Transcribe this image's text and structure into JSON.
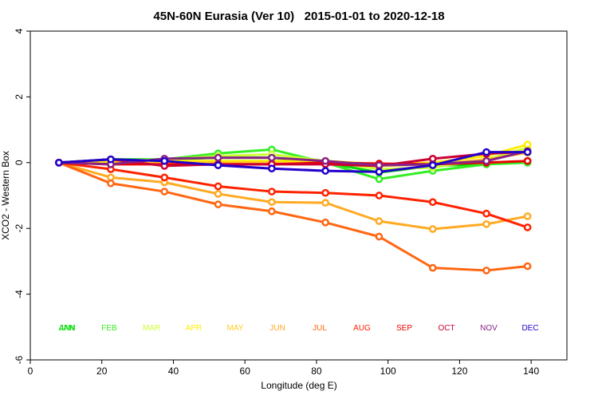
{
  "chart_data": {
    "type": "line",
    "title": "45N-60N Eurasia (Ver 10)   2015-01-01 to 2020-12-18",
    "xlabel": "Longitude (deg E)",
    "ylabel": "XCO2 - Western Box",
    "xlim": [
      0,
      150
    ],
    "ylim": [
      -6,
      4
    ],
    "xticks": [
      0,
      20,
      40,
      60,
      80,
      100,
      120,
      140
    ],
    "yticks": [
      -6,
      -4,
      -2,
      0,
      2,
      4
    ],
    "grid": false,
    "x": [
      8,
      22.5,
      37.5,
      52.5,
      67.5,
      82.5,
      97.5,
      112.5,
      127.5,
      139
    ],
    "series": [
      {
        "name": "JAN",
        "color": "#00dd00",
        "values": [
          0,
          0.05,
          0.1,
          0.15,
          0.15,
          0.0,
          -0.3,
          -0.1,
          -0.05,
          0.05
        ]
      },
      {
        "name": "FEB",
        "color": "#33ee22",
        "values": [
          0,
          0.1,
          0.1,
          0.28,
          0.4,
          0.0,
          -0.5,
          -0.25,
          -0.05,
          0.0
        ]
      },
      {
        "name": "MAR",
        "color": "#ccff33",
        "values": [
          0,
          0.05,
          0.1,
          0.2,
          0.25,
          0.05,
          -0.2,
          -0.15,
          0.1,
          0.45
        ]
      },
      {
        "name": "APR",
        "color": "#ffee00",
        "values": [
          0,
          0.0,
          0.05,
          0.05,
          0.05,
          0.05,
          -0.05,
          0.0,
          0.2,
          0.55
        ]
      },
      {
        "name": "MAY",
        "color": "#ffcc22",
        "values": [
          0,
          -0.05,
          0.0,
          0.0,
          0.0,
          -0.05,
          -0.1,
          -0.05,
          0.1,
          0.3
        ]
      },
      {
        "name": "JUN",
        "color": "#ffaa22",
        "values": [
          0,
          -0.45,
          -0.6,
          -0.95,
          -1.2,
          -1.22,
          -1.78,
          -2.02,
          -1.87,
          -1.63
        ]
      },
      {
        "name": "JUL",
        "color": "#ff6611",
        "values": [
          0,
          -0.63,
          -0.88,
          -1.27,
          -1.48,
          -1.82,
          -2.25,
          -3.2,
          -3.28,
          -3.15
        ]
      },
      {
        "name": "AUG",
        "color": "#ff2200",
        "values": [
          0,
          -0.2,
          -0.45,
          -0.72,
          -0.88,
          -0.92,
          -1.0,
          -1.2,
          -1.55,
          -1.97
        ]
      },
      {
        "name": "SEP",
        "color": "#ee0000",
        "values": [
          0,
          -0.05,
          -0.05,
          -0.05,
          -0.05,
          0.0,
          -0.03,
          -0.05,
          0.0,
          0.05
        ]
      },
      {
        "name": "OCT",
        "color": "#cc0033",
        "values": [
          0,
          0.1,
          -0.1,
          -0.05,
          -0.05,
          -0.05,
          -0.1,
          0.12,
          0.27,
          0.33
        ]
      },
      {
        "name": "NOV",
        "color": "#882288",
        "values": [
          0,
          -0.05,
          0.12,
          0.15,
          0.15,
          0.05,
          -0.08,
          -0.05,
          0.05,
          0.35
        ]
      },
      {
        "name": "DEC",
        "color": "#2200cc",
        "values": [
          0,
          0.1,
          0.05,
          -0.08,
          -0.18,
          -0.25,
          -0.28,
          -0.08,
          0.32,
          0.32
        ]
      }
    ],
    "month_labels": [
      {
        "text": "ANN",
        "color": "#00dd00"
      },
      {
        "text": "JAN",
        "color": "#00dd00"
      },
      {
        "text": "FEB",
        "color": "#33ee22"
      },
      {
        "text": "MAR",
        "color": "#ccff33"
      },
      {
        "text": "APR",
        "color": "#ffee00"
      },
      {
        "text": "MAY",
        "color": "#ffcc22"
      },
      {
        "text": "JUN",
        "color": "#ffaa22"
      },
      {
        "text": "JUL",
        "color": "#ff6611"
      },
      {
        "text": "AUG",
        "color": "#ff2200"
      },
      {
        "text": "SEP",
        "color": "#ee0000"
      },
      {
        "text": "OCT",
        "color": "#cc0033"
      },
      {
        "text": "NOV",
        "color": "#882288"
      },
      {
        "text": "DEC",
        "color": "#2200cc"
      }
    ]
  }
}
